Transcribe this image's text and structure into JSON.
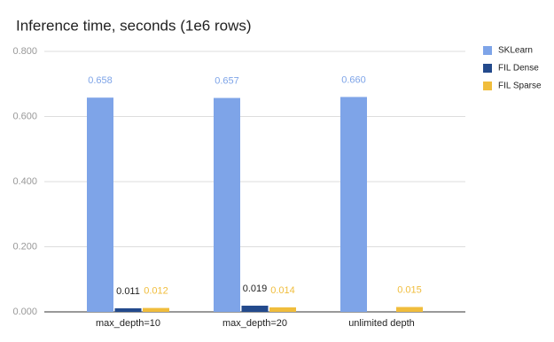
{
  "chart_data": {
    "type": "bar",
    "title": "Inference time, seconds (1e6 rows)",
    "categories": [
      "max_depth=10",
      "max_depth=20",
      "unlimited depth"
    ],
    "series": [
      {
        "name": "SKLearn",
        "color": "#7ea4e8",
        "values": [
          0.658,
          0.657,
          0.66
        ],
        "value_labels": [
          "0.658",
          "0.657",
          "0.660"
        ]
      },
      {
        "name": "FIL Dense",
        "color": "#234a8c",
        "values": [
          0.011,
          0.019,
          null
        ]
      },
      {
        "name": "FIL Sparse",
        "color": "#f0bd3c",
        "values": [
          0.012,
          0.014,
          0.015
        ]
      }
    ],
    "ylim": [
      0,
      0.8
    ],
    "yticks": [
      {
        "value": 0,
        "label": "0.000"
      },
      {
        "value": 0.2,
        "label": "0.200"
      },
      {
        "value": 0.4,
        "label": "0.400"
      },
      {
        "value": 0.6,
        "label": "0.600"
      },
      {
        "value": 0.8,
        "label": "0.800"
      }
    ],
    "grid": true,
    "legend": "right"
  }
}
